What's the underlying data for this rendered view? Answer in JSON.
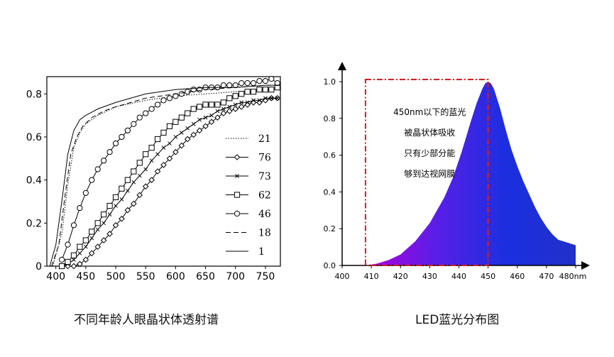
{
  "chart_data": [
    {
      "type": "line",
      "caption": "不同年龄人眼晶状体透射谱",
      "xlim": [
        385,
        775
      ],
      "ylim": [
        0,
        0.88
      ],
      "x_ticks": [
        "400",
        "450",
        "500",
        "550",
        "600",
        "650",
        "700",
        "750"
      ],
      "y_ticks": [
        "0",
        "0.2",
        "0.4",
        "0.6",
        "0.8"
      ],
      "legend_position": "right, inside plot",
      "series": [
        {
          "name": "21",
          "style": "dotted",
          "marker": "none",
          "x": [
            395,
            410,
            420,
            430,
            440,
            450,
            470,
            500,
            550,
            600,
            650,
            700,
            750,
            775
          ],
          "y": [
            0.0,
            0.15,
            0.38,
            0.55,
            0.62,
            0.66,
            0.7,
            0.74,
            0.77,
            0.79,
            0.8,
            0.81,
            0.82,
            0.82
          ]
        },
        {
          "name": "76",
          "style": "solid",
          "marker": "diamond",
          "x": [
            410,
            420,
            430,
            440,
            450,
            460,
            470,
            480,
            490,
            500,
            510,
            520,
            530,
            540,
            550,
            560,
            570,
            580,
            590,
            600,
            610,
            620,
            630,
            640,
            650,
            660,
            670,
            680,
            690,
            700,
            710,
            720,
            730,
            740,
            750,
            760,
            770
          ],
          "y": [
            0.0,
            0.0,
            0.0,
            0.01,
            0.03,
            0.06,
            0.09,
            0.12,
            0.15,
            0.19,
            0.22,
            0.26,
            0.29,
            0.33,
            0.37,
            0.4,
            0.44,
            0.47,
            0.5,
            0.53,
            0.56,
            0.59,
            0.61,
            0.63,
            0.65,
            0.67,
            0.69,
            0.71,
            0.72,
            0.73,
            0.74,
            0.75,
            0.76,
            0.76,
            0.77,
            0.78,
            0.78
          ]
        },
        {
          "name": "73",
          "style": "solid",
          "marker": "x",
          "x": [
            410,
            420,
            430,
            440,
            450,
            460,
            470,
            480,
            490,
            500,
            510,
            520,
            530,
            540,
            550,
            560,
            570,
            580,
            590,
            600,
            610,
            620,
            630,
            640,
            650,
            660,
            670,
            680,
            690,
            700,
            710,
            720,
            730,
            740,
            750,
            760,
            770
          ],
          "y": [
            0.0,
            0.01,
            0.03,
            0.06,
            0.09,
            0.13,
            0.17,
            0.2,
            0.24,
            0.28,
            0.31,
            0.35,
            0.39,
            0.42,
            0.45,
            0.49,
            0.52,
            0.55,
            0.57,
            0.6,
            0.62,
            0.64,
            0.66,
            0.68,
            0.69,
            0.7,
            0.72,
            0.73,
            0.74,
            0.75,
            0.76,
            0.76,
            0.77,
            0.77,
            0.78,
            0.78,
            0.78
          ]
        },
        {
          "name": "62",
          "style": "solid",
          "marker": "square",
          "x": [
            410,
            420,
            430,
            440,
            450,
            460,
            470,
            480,
            490,
            500,
            510,
            520,
            530,
            540,
            550,
            560,
            570,
            580,
            590,
            600,
            610,
            620,
            630,
            640,
            650,
            660,
            670,
            680,
            690,
            700,
            710,
            720,
            730,
            740,
            750,
            760,
            770
          ],
          "y": [
            0.0,
            0.02,
            0.05,
            0.09,
            0.12,
            0.16,
            0.2,
            0.24,
            0.28,
            0.32,
            0.36,
            0.4,
            0.44,
            0.48,
            0.52,
            0.55,
            0.59,
            0.62,
            0.65,
            0.67,
            0.69,
            0.71,
            0.73,
            0.74,
            0.75,
            0.75,
            0.75,
            0.76,
            0.78,
            0.79,
            0.8,
            0.81,
            0.81,
            0.82,
            0.82,
            0.82,
            0.83
          ]
        },
        {
          "name": "46",
          "style": "solid",
          "marker": "circle",
          "x": [
            410,
            420,
            430,
            440,
            450,
            460,
            470,
            480,
            490,
            500,
            510,
            520,
            530,
            540,
            550,
            560,
            570,
            580,
            590,
            600,
            610,
            620,
            630,
            640,
            650,
            660,
            670,
            680,
            690,
            700,
            710,
            720,
            730,
            740,
            750,
            760,
            770
          ],
          "y": [
            0.03,
            0.1,
            0.19,
            0.27,
            0.34,
            0.4,
            0.45,
            0.49,
            0.53,
            0.57,
            0.6,
            0.63,
            0.66,
            0.69,
            0.71,
            0.73,
            0.75,
            0.77,
            0.78,
            0.79,
            0.8,
            0.81,
            0.82,
            0.82,
            0.83,
            0.83,
            0.83,
            0.84,
            0.84,
            0.84,
            0.85,
            0.85,
            0.85,
            0.86,
            0.86,
            0.87,
            0.85
          ]
        },
        {
          "name": "18",
          "style": "dashed",
          "marker": "none",
          "x": [
            393,
            405,
            415,
            425,
            435,
            445,
            460,
            480,
            500,
            550,
            600,
            650,
            700,
            750,
            775
          ],
          "y": [
            0.0,
            0.1,
            0.32,
            0.52,
            0.6,
            0.65,
            0.69,
            0.72,
            0.74,
            0.78,
            0.8,
            0.82,
            0.83,
            0.84,
            0.84
          ]
        },
        {
          "name": "1",
          "style": "solid",
          "marker": "none",
          "x": [
            390,
            400,
            410,
            420,
            430,
            440,
            450,
            470,
            500,
            550,
            600,
            650,
            700,
            750,
            775
          ],
          "y": [
            0.0,
            0.1,
            0.3,
            0.52,
            0.63,
            0.68,
            0.7,
            0.73,
            0.76,
            0.8,
            0.82,
            0.83,
            0.83,
            0.84,
            0.84
          ]
        }
      ]
    },
    {
      "type": "area",
      "caption": "LED蓝光分布图",
      "xlim": [
        400,
        480
      ],
      "ylim": [
        0,
        1.0
      ],
      "x_ticks": [
        "400",
        "410",
        "420",
        "430",
        "440",
        "450",
        "460",
        "470"
      ],
      "x_tick_last": "480nm",
      "y_ticks": [
        "0.0",
        "0.2",
        "0.4",
        "0.6",
        "0.8",
        "1.0"
      ],
      "series": [
        {
          "x": [
            408,
            412,
            416,
            420,
            425,
            430,
            435,
            438,
            441,
            444,
            446,
            448,
            449,
            450,
            451,
            452,
            454,
            456,
            458,
            460,
            462,
            464,
            466,
            468,
            470,
            472,
            474,
            476,
            478,
            480
          ],
          "y": [
            0.0,
            0.01,
            0.03,
            0.06,
            0.13,
            0.23,
            0.37,
            0.48,
            0.62,
            0.78,
            0.88,
            0.96,
            0.99,
            1.0,
            0.99,
            0.96,
            0.86,
            0.74,
            0.63,
            0.54,
            0.46,
            0.39,
            0.32,
            0.26,
            0.21,
            0.17,
            0.14,
            0.13,
            0.12,
            0.11
          ]
        }
      ],
      "gradient_colors": [
        "#b100d9",
        "#5a1ee8",
        "#1b2fe0",
        "#2030c8"
      ],
      "box_color": "#d22020",
      "box_range": {
        "x": [
          408,
          450
        ],
        "y": [
          0,
          1.0
        ]
      },
      "annotation_lines": [
        "450nm以下的蓝光",
        "被晶状体吸收",
        "只有少部分能",
        "够到达视网膜"
      ]
    }
  ]
}
